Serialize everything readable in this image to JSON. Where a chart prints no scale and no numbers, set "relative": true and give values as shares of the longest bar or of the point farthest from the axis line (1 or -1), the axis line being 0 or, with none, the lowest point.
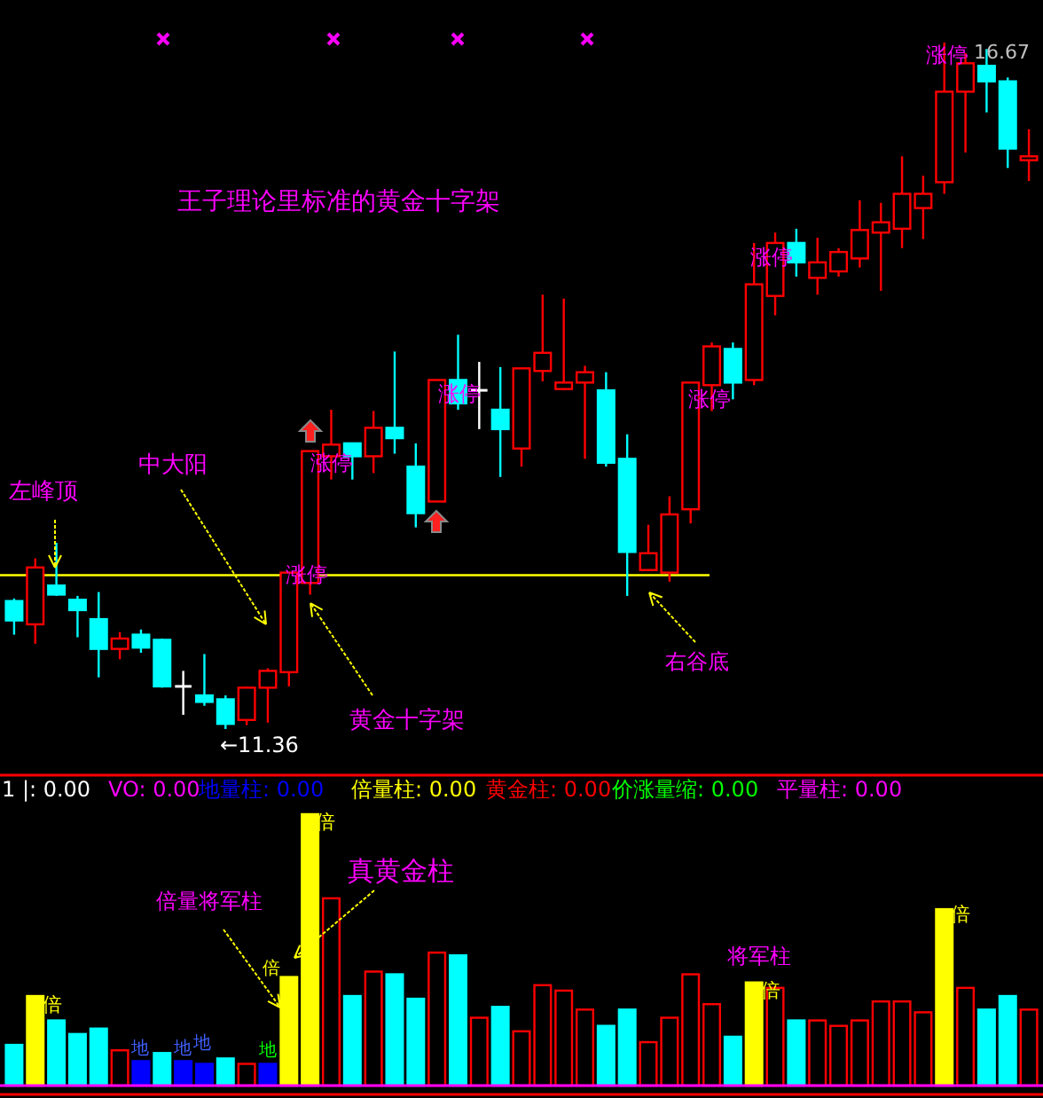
{
  "chart_data": [
    {
      "type": "candlestick",
      "categories": [
        null,
        null,
        null,
        null,
        null,
        null,
        null,
        null,
        null,
        null,
        null,
        null,
        null,
        null,
        null,
        null,
        null,
        null,
        null,
        null,
        null,
        null,
        null,
        null,
        null,
        null,
        null,
        null,
        null,
        null,
        null,
        null,
        null,
        null,
        null,
        null,
        null,
        null,
        null,
        null,
        null,
        null,
        null,
        null,
        null,
        null,
        null,
        null,
        null
      ],
      "ohlc": [
        [
          12.35,
          12.37,
          12.09,
          12.2
        ],
        [
          12.17,
          12.68,
          12.02,
          12.61
        ],
        [
          12.47,
          12.8,
          12.39,
          12.4
        ],
        [
          12.36,
          12.39,
          12.07,
          12.28
        ],
        [
          12.21,
          12.42,
          11.76,
          11.98
        ],
        [
          11.98,
          12.11,
          11.9,
          12.06
        ],
        [
          12.09,
          12.13,
          11.95,
          11.99
        ],
        [
          12.05,
          12.06,
          11.68,
          11.69
        ],
        [
          11.69,
          11.81,
          11.47,
          11.69
        ],
        [
          11.62,
          11.94,
          11.54,
          11.57
        ],
        [
          11.59,
          11.62,
          11.36,
          11.4
        ],
        [
          11.43,
          11.69,
          11.39,
          11.68
        ],
        [
          11.68,
          11.83,
          11.41,
          11.81
        ],
        [
          11.8,
          12.57,
          11.69,
          12.57
        ],
        [
          12.49,
          13.51,
          12.4,
          13.51
        ],
        [
          13.47,
          13.83,
          13.29,
          13.56
        ],
        [
          13.57,
          13.57,
          13.29,
          13.47
        ],
        [
          13.47,
          13.82,
          13.34,
          13.69
        ],
        [
          13.69,
          14.28,
          13.49,
          13.61
        ],
        [
          13.39,
          13.57,
          12.92,
          13.03
        ],
        [
          13.12,
          14.06,
          13.12,
          14.06
        ],
        [
          14.06,
          14.41,
          13.83,
          13.88
        ],
        [
          13.98,
          14.2,
          13.68,
          13.98
        ],
        [
          13.83,
          14.16,
          13.31,
          13.68
        ],
        [
          13.53,
          14.15,
          13.39,
          14.15
        ],
        [
          14.13,
          14.72,
          14.05,
          14.27
        ],
        [
          13.99,
          14.69,
          13.98,
          14.04
        ],
        [
          14.04,
          14.17,
          13.45,
          14.12
        ],
        [
          13.98,
          14.12,
          13.39,
          13.42
        ],
        [
          13.45,
          13.64,
          12.39,
          12.73
        ],
        [
          12.59,
          12.94,
          12.59,
          12.72
        ],
        [
          12.57,
          13.16,
          12.5,
          13.02
        ],
        [
          13.06,
          14.04,
          12.95,
          14.04
        ],
        [
          14.02,
          14.35,
          13.82,
          14.32
        ],
        [
          14.3,
          14.35,
          13.91,
          14.04
        ],
        [
          14.06,
          15.12,
          14.02,
          14.8
        ],
        [
          14.71,
          15.2,
          14.56,
          15.12
        ],
        [
          15.12,
          15.23,
          14.86,
          14.97
        ],
        [
          14.85,
          15.16,
          14.72,
          14.97
        ],
        [
          14.9,
          15.08,
          14.86,
          15.05
        ],
        [
          15.0,
          15.45,
          14.93,
          15.22
        ],
        [
          15.2,
          15.43,
          14.75,
          15.28
        ],
        [
          15.23,
          15.79,
          15.08,
          15.5
        ],
        [
          15.39,
          15.64,
          15.15,
          15.5
        ],
        [
          15.59,
          16.67,
          15.5,
          16.29
        ],
        [
          16.29,
          16.59,
          15.82,
          16.51
        ],
        [
          16.49,
          16.62,
          16.13,
          16.37
        ],
        [
          16.37,
          16.4,
          15.7,
          15.85
        ],
        [
          15.76,
          16.0,
          15.6,
          15.79
        ]
      ],
      "ref_lines": [
        {
          "axis": "y",
          "value": 12.55,
          "color": "#ffff00"
        }
      ],
      "annotations": [
        "王子理论里标准的黄金十字架",
        "左峰顶",
        "中大阳",
        "黄金十字架",
        "右谷底",
        "←11.36",
        "16.67",
        "涨停",
        "涨停",
        "涨停",
        "涨停",
        "涨停",
        "涨停"
      ]
    },
    {
      "type": "bar",
      "relative": true,
      "categories": [
        null,
        null,
        null,
        null,
        null,
        null,
        null,
        null,
        null,
        null,
        null,
        null,
        null,
        null,
        null,
        null,
        null,
        null,
        null,
        null,
        null,
        null,
        null,
        null,
        null,
        null,
        null,
        null,
        null,
        null,
        null,
        null,
        null,
        null,
        null,
        null,
        null,
        null,
        null,
        null,
        null,
        null,
        null,
        null,
        null,
        null,
        null,
        null,
        null
      ],
      "values": [
        0.15,
        0.33,
        0.24,
        0.19,
        0.21,
        0.13,
        0.09,
        0.12,
        0.09,
        0.08,
        0.1,
        0.08,
        0.08,
        0.4,
        1,
        0.69,
        0.33,
        0.42,
        0.41,
        0.32,
        0.49,
        0.48,
        0.25,
        0.29,
        0.2,
        0.37,
        0.35,
        0.28,
        0.22,
        0.28,
        0.16,
        0.25,
        0.41,
        0.3,
        0.18,
        0.38,
        0.36,
        0.24,
        0.24,
        0.22,
        0.24,
        0.31,
        0.31,
        0.27,
        0.65,
        0.36,
        0.28,
        0.33,
        0.28
      ],
      "colors": [
        "#00ffff",
        "#ffff00",
        "#00ffff",
        "#00ffff",
        "#00ffff",
        "#ff0000",
        "#0000ff",
        "#00ffff",
        "#0000ff",
        "#0000ff",
        "#00ffff",
        "#ff0000",
        "#0000ff",
        "#ffff00",
        "#ffff00",
        "#ff0000",
        "#00ffff",
        "#ff0000",
        "#00ffff",
        "#00ffff",
        "#ff0000",
        "#00ffff",
        "#ff0000",
        "#00ffff",
        "#ff0000",
        "#ff0000",
        "#ff0000",
        "#ff0000",
        "#00ffff",
        "#00ffff",
        "#ff0000",
        "#ff0000",
        "#ff0000",
        "#ff0000",
        "#00ffff",
        "#ffff00",
        "#ff0000",
        "#00ffff",
        "#ff0000",
        "#ff0000",
        "#ff0000",
        "#ff0000",
        "#ff0000",
        "#ff0000",
        "#ffff00",
        "#ff0000",
        "#00ffff",
        "#00ffff",
        "#ff0000"
      ],
      "annotations": [
        "1 |: 0.00",
        "VO: 0.00",
        "地量柱: 0.00",
        "倍量柱: 0.00",
        "黄金柱: 0.00",
        "价涨量缩: 0.00",
        "平量柱: 0.00",
        "真黄金柱",
        "倍量将军柱",
        "将军柱",
        "倍",
        "倍",
        "倍",
        "倍",
        "倍",
        "地",
        "地",
        "地",
        "地"
      ]
    }
  ]
}
